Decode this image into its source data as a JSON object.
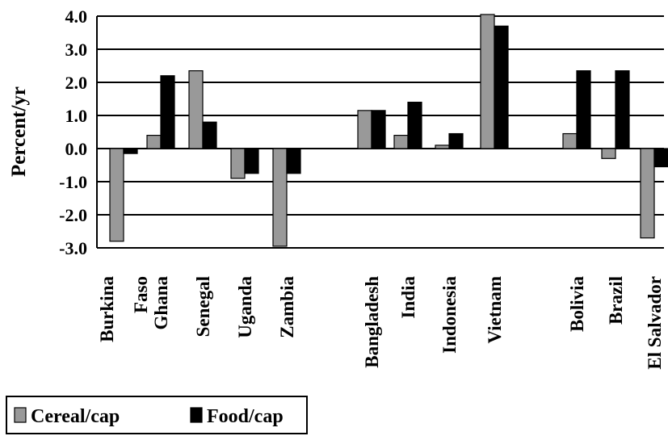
{
  "chart_data": {
    "type": "bar",
    "ylabel": "Percent/yr",
    "ylim": [
      -3.0,
      4.0
    ],
    "yticks": [
      "4.0",
      "3.0",
      "2.0",
      "1.0",
      "0.0",
      "-1.0",
      "-2.0",
      "-3.0"
    ],
    "grid": true,
    "legend_position": "bottom-left",
    "categories": [
      {
        "lines": [
          "Burkina",
          "Faso"
        ]
      },
      {
        "lines": [
          "Ghana"
        ]
      },
      {
        "lines": [
          "Senegal"
        ]
      },
      {
        "lines": [
          "Uganda"
        ]
      },
      {
        "lines": [
          "Zambia"
        ]
      },
      {
        "lines": [
          "Bangladesh"
        ]
      },
      {
        "lines": [
          "India"
        ]
      },
      {
        "lines": [
          "Indonesia"
        ]
      },
      {
        "lines": [
          "Vietnam"
        ]
      },
      {
        "lines": [
          "Bolivia"
        ]
      },
      {
        "lines": [
          "Brazil"
        ]
      },
      {
        "lines": [
          "El Salvador"
        ]
      }
    ],
    "series": [
      {
        "name": "Cereal/cap",
        "color": "#999999",
        "values": [
          -2.8,
          0.4,
          2.35,
          -0.9,
          -2.95,
          1.15,
          0.4,
          0.1,
          4.05,
          0.45,
          -0.3,
          -2.7
        ]
      },
      {
        "name": "Food/cap",
        "color": "#000000",
        "values": [
          -0.15,
          2.2,
          0.8,
          -0.75,
          -0.75,
          1.15,
          1.4,
          0.45,
          3.7,
          2.35,
          2.35,
          -0.55
        ]
      }
    ]
  }
}
